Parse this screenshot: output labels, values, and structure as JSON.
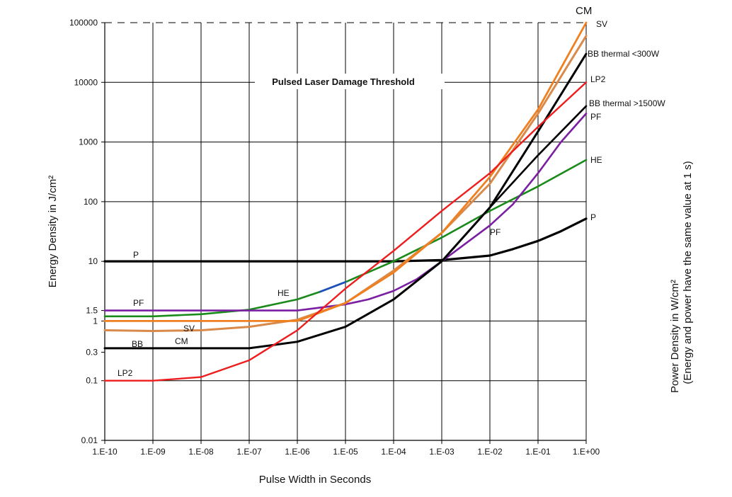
{
  "chart_data": {
    "type": "line",
    "title": "Pulsed Laser Damage Threshold",
    "xlabel": "Pulse Width in Seconds",
    "ylabel": "Energy Density in J/cm²",
    "ylabel_right_line1": "Power Density in W/cm²",
    "ylabel_right_line2": "(Energy and power have the same value at 1 s)",
    "x_scale": "log",
    "y_scale": "log",
    "xlim": [
      1e-10,
      1
    ],
    "ylim": [
      0.01,
      100000
    ],
    "grid": "horizontal",
    "x_ticks": [
      {
        "value": 1e-10,
        "label": "1.E-10"
      },
      {
        "value": 1e-09,
        "label": "1.E-09"
      },
      {
        "value": 1e-08,
        "label": "1.E-08"
      },
      {
        "value": 1e-07,
        "label": "1.E-07"
      },
      {
        "value": 1e-06,
        "label": "1.E-06"
      },
      {
        "value": 1e-05,
        "label": "1.E-05"
      },
      {
        "value": 0.0001,
        "label": "1.E-04"
      },
      {
        "value": 0.001,
        "label": "1.E-03"
      },
      {
        "value": 0.01,
        "label": "1.E-02"
      },
      {
        "value": 0.1,
        "label": "1.E-01"
      },
      {
        "value": 1,
        "label": "1.E+00"
      }
    ],
    "y_ticks": [
      {
        "value": 100000,
        "label": "100000"
      },
      {
        "value": 10000,
        "label": "10000"
      },
      {
        "value": 1000,
        "label": "1000"
      },
      {
        "value": 100,
        "label": "100"
      },
      {
        "value": 10,
        "label": "10"
      },
      {
        "value": 1.5,
        "label": "1.5"
      },
      {
        "value": 1,
        "label": "1"
      },
      {
        "value": 0.3,
        "label": "0.3"
      },
      {
        "value": 0.1,
        "label": "0.1"
      },
      {
        "value": 0.01,
        "label": "0.01"
      }
    ],
    "series": [
      {
        "id": "P",
        "color": "#000000",
        "label_left": "P",
        "label_right": "P",
        "points": [
          [
            1e-10,
            10
          ],
          [
            0.0001,
            10
          ],
          [
            0.001,
            10.5
          ],
          [
            0.01,
            12.5
          ],
          [
            0.03,
            16
          ],
          [
            0.1,
            22
          ],
          [
            0.3,
            32
          ],
          [
            1,
            52
          ]
        ]
      },
      {
        "id": "PF",
        "color": "#7a1fa2",
        "label_left": "PF",
        "label_mid": "PF",
        "label_right": "PF",
        "points": [
          [
            1e-10,
            1.5
          ],
          [
            1e-06,
            1.5
          ],
          [
            1e-05,
            1.9
          ],
          [
            3e-05,
            2.3
          ],
          [
            0.0001,
            3.2
          ],
          [
            0.0003,
            5
          ],
          [
            0.001,
            10
          ],
          [
            0.01,
            40
          ],
          [
            0.03,
            90
          ],
          [
            0.1,
            300
          ],
          [
            0.3,
            1000
          ],
          [
            1,
            3000
          ]
        ]
      },
      {
        "id": "HE",
        "color": "#1a8a1a",
        "label_mid": "HE",
        "label_right": "HE",
        "points": [
          [
            1e-10,
            1.2
          ],
          [
            1e-09,
            1.2
          ],
          [
            1e-08,
            1.3
          ],
          [
            1e-07,
            1.55
          ],
          [
            1e-06,
            2.3
          ],
          [
            3e-06,
            3.1
          ],
          [
            1e-05,
            4.5
          ],
          [
            0.0001,
            10
          ],
          [
            0.001,
            25
          ],
          [
            0.01,
            70
          ],
          [
            0.1,
            180
          ],
          [
            1,
            500
          ]
        ]
      },
      {
        "id": "SV",
        "color": "#f07f20",
        "label_mid": "SV",
        "label_right": "SV",
        "points": [
          [
            1e-10,
            1
          ],
          [
            1e-06,
            1
          ],
          [
            1e-05,
            2
          ],
          [
            0.0001,
            6.5
          ],
          [
            0.001,
            30
          ],
          [
            0.01,
            260
          ],
          [
            0.1,
            3500
          ],
          [
            1,
            100000
          ]
        ]
      },
      {
        "id": "CM",
        "color": "#d98a4a",
        "label_mid": "CM",
        "label_top": "CM",
        "points": [
          [
            1e-10,
            0.7
          ],
          [
            1e-09,
            0.68
          ],
          [
            1e-08,
            0.7
          ],
          [
            1e-07,
            0.8
          ],
          [
            1e-06,
            1.05
          ],
          [
            1e-05,
            2
          ],
          [
            0.0001,
            7
          ],
          [
            0.001,
            30
          ],
          [
            0.01,
            200
          ],
          [
            0.1,
            3000
          ],
          [
            1,
            60000
          ]
        ]
      },
      {
        "id": "BB",
        "color": "#000000",
        "label_left": "BB",
        "label_right_a": "BB thermal <300W",
        "label_right_b": "BB thermal >1500W",
        "points_a": [
          [
            1e-10,
            0.35
          ],
          [
            1e-07,
            0.35
          ],
          [
            1e-06,
            0.45
          ],
          [
            1e-05,
            0.8
          ],
          [
            0.0001,
            2.3
          ],
          [
            0.001,
            10
          ],
          [
            0.01,
            80
          ],
          [
            0.1,
            1500
          ],
          [
            1,
            30000
          ]
        ],
        "points_b": [
          [
            0.01,
            80
          ],
          [
            0.1,
            600
          ],
          [
            1,
            4000
          ]
        ]
      },
      {
        "id": "LP2",
        "color": "#ee1c1c",
        "label_left": "LP2",
        "label_right": "LP2",
        "points": [
          [
            1e-10,
            0.1
          ],
          [
            1e-09,
            0.1
          ],
          [
            1e-08,
            0.115
          ],
          [
            1e-07,
            0.22
          ],
          [
            1e-06,
            0.7
          ],
          [
            1e-05,
            3.5
          ],
          [
            0.0001,
            15
          ],
          [
            0.001,
            70
          ],
          [
            0.01,
            300
          ],
          [
            0.1,
            1800
          ],
          [
            1,
            10000
          ]
        ]
      }
    ]
  }
}
